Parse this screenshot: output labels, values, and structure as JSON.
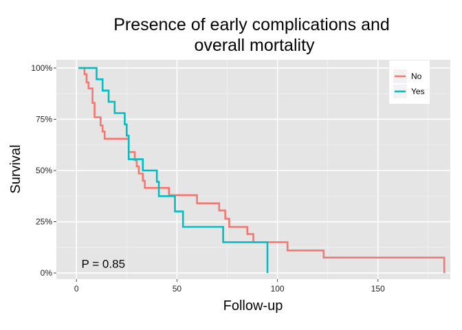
{
  "chart_data": {
    "type": "line",
    "title_lines": [
      "Presence of early complications and",
      "overall mortality"
    ],
    "xlabel": "Follow-up",
    "ylabel": "Survival",
    "xlim": [
      -10,
      186
    ],
    "ylim": [
      -0.03,
      1.04
    ],
    "x_ticks": [
      0,
      50,
      100,
      150
    ],
    "x_tick_labels": [
      "0",
      "50",
      "100",
      "150"
    ],
    "y_ticks": [
      0,
      0.25,
      0.5,
      0.75,
      1
    ],
    "y_tick_labels": [
      "0%",
      "25%",
      "50%",
      "75%",
      "100%"
    ],
    "grid": true,
    "legend_position": "top-right",
    "annotation": {
      "text": "P = 0.85",
      "x": 2.5,
      "y": 0.045
    },
    "series": [
      {
        "name": "No",
        "color": "#F8766D",
        "points": [
          [
            1,
            1
          ],
          [
            4,
            1
          ],
          [
            4,
            0.97
          ],
          [
            5,
            0.97
          ],
          [
            5,
            0.93
          ],
          [
            6,
            0.93
          ],
          [
            6,
            0.9
          ],
          [
            8,
            0.9
          ],
          [
            8,
            0.83
          ],
          [
            9,
            0.83
          ],
          [
            9,
            0.76
          ],
          [
            12,
            0.76
          ],
          [
            12,
            0.72
          ],
          [
            13,
            0.72
          ],
          [
            13,
            0.69
          ],
          [
            14,
            0.69
          ],
          [
            14,
            0.655
          ],
          [
            26,
            0.655
          ],
          [
            26,
            0.59
          ],
          [
            29,
            0.59
          ],
          [
            29,
            0.55
          ],
          [
            30,
            0.55
          ],
          [
            30,
            0.52
          ],
          [
            31,
            0.52
          ],
          [
            31,
            0.485
          ],
          [
            33,
            0.485
          ],
          [
            33,
            0.45
          ],
          [
            34,
            0.45
          ],
          [
            34,
            0.415
          ],
          [
            46,
            0.415
          ],
          [
            46,
            0.38
          ],
          [
            60,
            0.38
          ],
          [
            60,
            0.34
          ],
          [
            71,
            0.34
          ],
          [
            71,
            0.305
          ],
          [
            74,
            0.305
          ],
          [
            74,
            0.265
          ],
          [
            76,
            0.265
          ],
          [
            76,
            0.225
          ],
          [
            85,
            0.225
          ],
          [
            85,
            0.19
          ],
          [
            88,
            0.19
          ],
          [
            88,
            0.15
          ],
          [
            105,
            0.15
          ],
          [
            105,
            0.11
          ],
          [
            123,
            0.11
          ],
          [
            123,
            0.075
          ],
          [
            183,
            0.075
          ],
          [
            183,
            0
          ]
        ]
      },
      {
        "name": "Yes",
        "color": "#00BFC4",
        "points": [
          [
            1,
            1
          ],
          [
            10,
            1
          ],
          [
            10,
            0.945
          ],
          [
            13,
            0.945
          ],
          [
            13,
            0.89
          ],
          [
            16,
            0.89
          ],
          [
            16,
            0.835
          ],
          [
            19,
            0.835
          ],
          [
            19,
            0.78
          ],
          [
            24,
            0.78
          ],
          [
            24,
            0.725
          ],
          [
            25,
            0.725
          ],
          [
            25,
            0.67
          ],
          [
            26,
            0.67
          ],
          [
            26,
            0.555
          ],
          [
            33,
            0.555
          ],
          [
            33,
            0.5
          ],
          [
            40,
            0.5
          ],
          [
            40,
            0.445
          ],
          [
            41,
            0.445
          ],
          [
            41,
            0.375
          ],
          [
            49,
            0.375
          ],
          [
            49,
            0.3
          ],
          [
            53,
            0.3
          ],
          [
            53,
            0.225
          ],
          [
            73,
            0.225
          ],
          [
            73,
            0.15
          ],
          [
            95,
            0.15
          ],
          [
            95,
            0
          ]
        ]
      }
    ]
  }
}
